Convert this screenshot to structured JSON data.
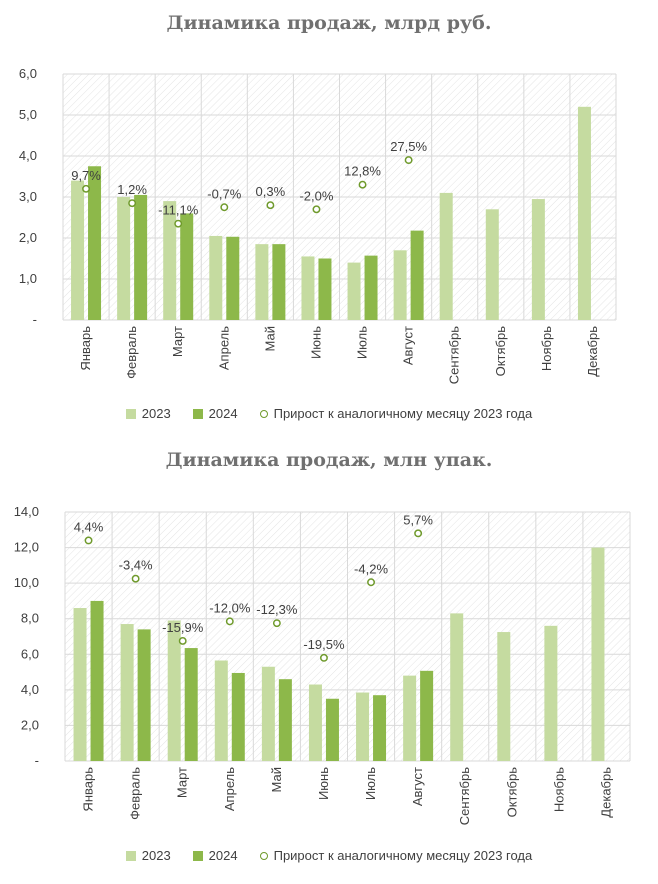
{
  "colors": {
    "y2023": "#c5dba0",
    "y2024": "#8db84a",
    "growth": "#6f9a2c",
    "grid": "#d9d9d9"
  },
  "chart_data": [
    {
      "type": "bar",
      "title": "Динамика продаж, млрд руб.",
      "categories": [
        "Январь",
        "Февраль",
        "Март",
        "Апрель",
        "Май",
        "Июнь",
        "Июль",
        "Август",
        "Сентябрь",
        "Октябрь",
        "Ноябрь",
        "Декабрь"
      ],
      "series": [
        {
          "name": "2023",
          "values": [
            3.4,
            3.0,
            2.9,
            2.05,
            1.85,
            1.55,
            1.4,
            1.7,
            3.1,
            2.7,
            2.95,
            5.2
          ]
        },
        {
          "name": "2024",
          "values": [
            3.75,
            3.05,
            2.6,
            2.03,
            1.85,
            1.5,
            1.57,
            2.18,
            null,
            null,
            null,
            null
          ]
        }
      ],
      "growth": {
        "name": "Прирост к аналогичному месяцу 2023 года",
        "labels": [
          "9,7%",
          "1,2%",
          "-11,1%",
          "-0,7%",
          "0,3%",
          "-2,0%",
          "12,8%",
          "27,5%"
        ],
        "marker_values": [
          3.2,
          2.85,
          2.35,
          2.75,
          2.8,
          2.7,
          3.3,
          3.9
        ]
      },
      "ylim": [
        0,
        6
      ],
      "yticks": [
        "-",
        "1,0",
        "2,0",
        "3,0",
        "4,0",
        "5,0",
        "6,0"
      ],
      "legend": [
        "2023",
        "2024",
        "Прирост к аналогичному месяцу 2023 года"
      ]
    },
    {
      "type": "bar",
      "title": "Динамика продаж, млн упак.",
      "categories": [
        "Январь",
        "Февраль",
        "Март",
        "Апрель",
        "Май",
        "Июнь",
        "Июль",
        "Август",
        "Сентябрь",
        "Октябрь",
        "Ноябрь",
        "Декабрь"
      ],
      "series": [
        {
          "name": "2023",
          "values": [
            8.6,
            7.7,
            7.9,
            5.65,
            5.3,
            4.3,
            3.85,
            4.8,
            8.3,
            7.25,
            7.6,
            12.0
          ]
        },
        {
          "name": "2024",
          "values": [
            9.0,
            7.4,
            6.35,
            4.95,
            4.6,
            3.5,
            3.7,
            5.07,
            null,
            null,
            null,
            null
          ]
        }
      ],
      "growth": {
        "name": "Прирост к аналогичному месяцу 2023 года",
        "labels": [
          "4,4%",
          "-3,4%",
          "-15,9%",
          "-12,0%",
          "-12,3%",
          "-19,5%",
          "-4,2%",
          "5,7%"
        ],
        "marker_values": [
          12.4,
          10.25,
          6.75,
          7.85,
          7.75,
          5.8,
          10.05,
          12.8
        ]
      },
      "ylim": [
        0,
        14
      ],
      "yticks": [
        "-",
        "2,0",
        "4,0",
        "6,0",
        "8,0",
        "10,0",
        "12,0",
        "14,0"
      ],
      "legend": [
        "2023",
        "2024",
        "Прирост к аналогичному месяцу 2023 года"
      ]
    }
  ]
}
